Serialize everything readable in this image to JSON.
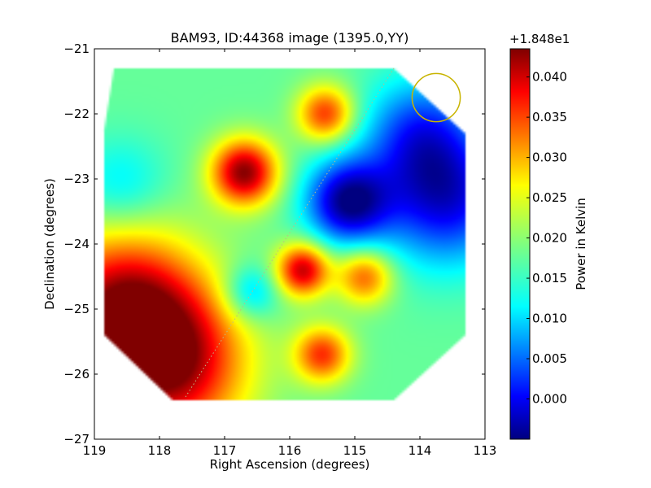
{
  "chart_data": {
    "type": "heatmap",
    "title": "BAM93, ID:44368 image (1395.0,YY)",
    "xlabel": "Right Ascension (degrees)",
    "ylabel": "Declination (degrees)",
    "xlim": [
      119,
      113
    ],
    "ylim": [
      -27,
      -21
    ],
    "x_ticks": [
      119,
      118,
      117,
      116,
      115,
      114,
      113
    ],
    "x_tick_labels": [
      "119",
      "118",
      "117",
      "116",
      "115",
      "114",
      "113"
    ],
    "y_ticks": [
      -21,
      -22,
      -23,
      -24,
      -25,
      -26,
      -27
    ],
    "y_tick_labels": [
      "−21",
      "−22",
      "−23",
      "−24",
      "−25",
      "−26",
      "−27"
    ],
    "grid": false,
    "colormap": "jet",
    "colorbar": {
      "label": "Power in Kelvin",
      "offset_label": "+1.848e1",
      "range": [
        -0.005,
        0.0435
      ],
      "ticks": [
        0.0,
        0.005,
        0.01,
        0.015,
        0.02,
        0.025,
        0.03,
        0.035,
        0.04
      ],
      "tick_labels": [
        "0.000",
        "0.005",
        "0.010",
        "0.015",
        "0.020",
        "0.025",
        "0.030",
        "0.035",
        "0.040"
      ]
    },
    "base_level": 0.018,
    "features": [
      {
        "ra": 118.55,
        "dec": -25.05,
        "value": 0.043,
        "sigma": 0.85
      },
      {
        "ra": 117.8,
        "dec": -25.9,
        "value": 0.038,
        "sigma": 0.8
      },
      {
        "ra": 116.7,
        "dec": -22.9,
        "value": 0.043,
        "sigma": 0.35
      },
      {
        "ra": 115.45,
        "dec": -22.0,
        "value": 0.035,
        "sigma": 0.3
      },
      {
        "ra": 115.8,
        "dec": -24.4,
        "value": 0.04,
        "sigma": 0.28
      },
      {
        "ra": 114.85,
        "dec": -24.5,
        "value": 0.033,
        "sigma": 0.3
      },
      {
        "ra": 115.5,
        "dec": -25.7,
        "value": 0.035,
        "sigma": 0.3
      },
      {
        "ra": 118.6,
        "dec": -23.1,
        "value": 0.012,
        "sigma": 0.5
      },
      {
        "ra": 116.6,
        "dec": -24.75,
        "value": 0.009,
        "sigma": 0.3
      },
      {
        "ra": 115.1,
        "dec": -23.35,
        "value": -0.004,
        "sigma": 0.45
      },
      {
        "ra": 113.6,
        "dec": -23.3,
        "value": 0.0,
        "sigma": 0.7
      },
      {
        "ra": 114.0,
        "dec": -22.3,
        "value": 0.005,
        "sigma": 0.6
      }
    ],
    "beam_circle": {
      "ra": 113.75,
      "dec": -21.75,
      "radius_deg": 0.37,
      "color": "#c8b400"
    },
    "dotted_line": {
      "from": [
        117.6,
        -26.35
      ],
      "to": [
        114.4,
        -21.3
      ]
    },
    "footprint": [
      [
        118.7,
        -21.3
      ],
      [
        114.4,
        -21.3
      ],
      [
        113.3,
        -22.3
      ],
      [
        113.3,
        -25.4
      ],
      [
        114.4,
        -26.4
      ],
      [
        117.8,
        -26.4
      ],
      [
        118.85,
        -25.4
      ],
      [
        118.85,
        -22.25
      ]
    ]
  }
}
